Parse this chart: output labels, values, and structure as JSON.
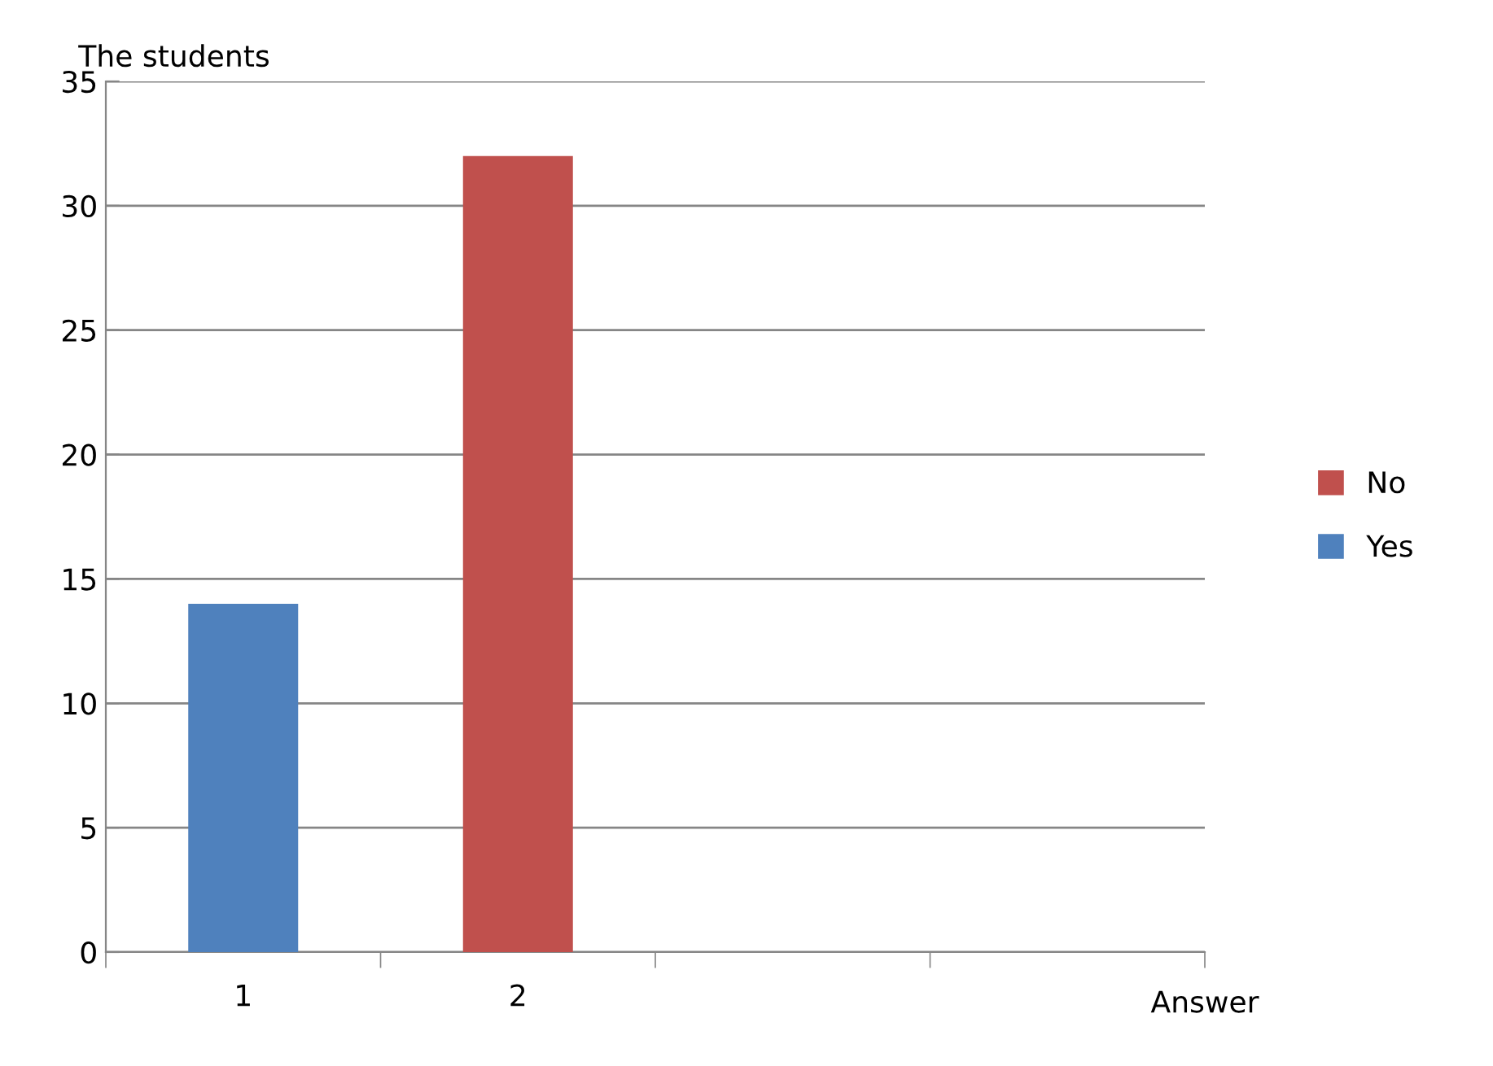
{
  "chart_data": {
    "type": "bar",
    "ylabel": "The students",
    "xlabel": "Answer",
    "stacked": true,
    "categories": [
      "1",
      "2",
      null,
      null
    ],
    "series": [
      {
        "name": "Yes",
        "color": "#4f81bd",
        "values": [
          14,
          null,
          null,
          null
        ]
      },
      {
        "name": "No",
        "color": "#c0504d",
        "values": [
          null,
          32,
          null,
          null
        ]
      }
    ],
    "ylim": [
      0,
      35
    ],
    "yticks": [
      0,
      5,
      10,
      15,
      20,
      25,
      30,
      35
    ],
    "grid": "y",
    "legend": "right"
  }
}
